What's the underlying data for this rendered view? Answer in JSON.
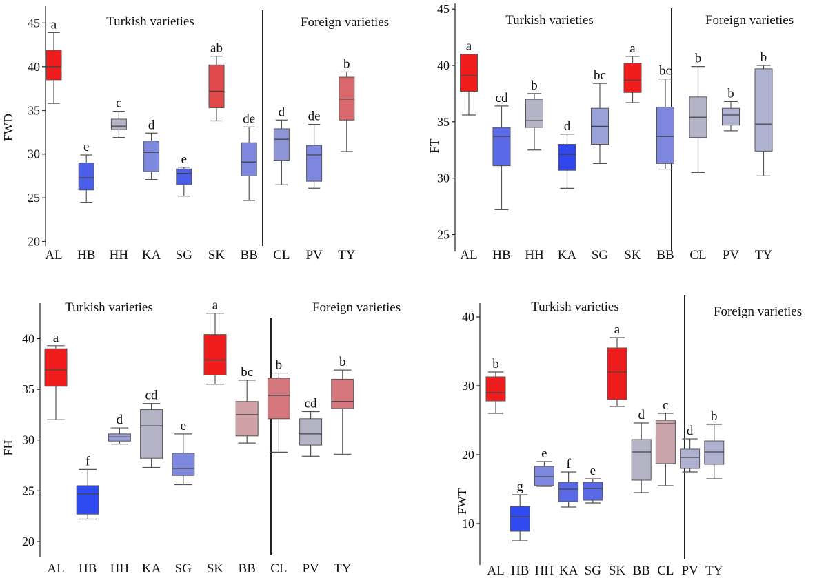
{
  "chart_data": [
    {
      "type": "boxplot",
      "ylabel": "FWD",
      "ylim": [
        19.5,
        47
      ],
      "yticks": [
        20,
        25,
        30,
        35,
        40,
        45
      ],
      "group_labels": [
        "Turkish varieties",
        "Foreign varieties"
      ],
      "categories": [
        "AL",
        "HB",
        "HH",
        "KA",
        "SG",
        "SK",
        "BB",
        "CL",
        "PV",
        "TY"
      ],
      "boxes": [
        {
          "min": 35.8,
          "q1": 38.5,
          "median": 40.0,
          "q3": 41.9,
          "max": 43.9,
          "color": "#ee1c1c",
          "letter": "a"
        },
        {
          "min": 24.5,
          "q1": 25.9,
          "median": 27.3,
          "q3": 29.0,
          "max": 29.9,
          "color": "#4a5ee8",
          "letter": "e"
        },
        {
          "min": 31.9,
          "q1": 32.8,
          "median": 33.2,
          "q3": 34.0,
          "max": 34.9,
          "color": "#b4b4c6",
          "letter": "c"
        },
        {
          "min": 27.1,
          "q1": 28.0,
          "median": 30.2,
          "q3": 31.5,
          "max": 32.4,
          "color": "#7e88de",
          "letter": "d"
        },
        {
          "min": 25.2,
          "q1": 26.5,
          "median": 27.8,
          "q3": 28.3,
          "max": 28.5,
          "color": "#4a5ee8",
          "letter": "e"
        },
        {
          "min": 33.8,
          "q1": 35.3,
          "median": 37.2,
          "q3": 40.2,
          "max": 41.2,
          "color": "#e04a4a",
          "letter": "ab"
        },
        {
          "min": 24.7,
          "q1": 27.5,
          "median": 29.1,
          "q3": 31.3,
          "max": 33.1,
          "color": "#7e88de",
          "letter": "de"
        },
        {
          "min": 26.5,
          "q1": 29.3,
          "median": 31.7,
          "q3": 32.9,
          "max": 33.9,
          "color": "#8e96d8",
          "letter": "d"
        },
        {
          "min": 26.1,
          "q1": 26.9,
          "median": 29.9,
          "q3": 31.0,
          "max": 33.4,
          "color": "#7e88de",
          "letter": "de"
        },
        {
          "min": 30.3,
          "q1": 33.9,
          "median": 36.3,
          "q3": 38.8,
          "max": 39.4,
          "color": "#d9676c",
          "letter": "b"
        }
      ]
    },
    {
      "type": "boxplot",
      "ylabel": "FT",
      "ylim": [
        23.5,
        45.5
      ],
      "yticks": [
        25,
        30,
        35,
        40,
        45
      ],
      "group_labels": [
        "Turkish varieties",
        "Foreign varieties"
      ],
      "categories": [
        "AL",
        "HB",
        "HH",
        "KA",
        "SG",
        "SK",
        "BB",
        "CL",
        "PV",
        "TY"
      ],
      "boxes": [
        {
          "min": 35.6,
          "q1": 37.7,
          "median": 39.1,
          "q3": 41.0,
          "max": 41.0,
          "color": "#ee1c1c",
          "letter": "a"
        },
        {
          "min": 27.2,
          "q1": 31.1,
          "median": 33.7,
          "q3": 34.5,
          "max": 36.4,
          "color": "#5a6ae6",
          "letter": "cd"
        },
        {
          "min": 32.5,
          "q1": 34.5,
          "median": 35.1,
          "q3": 37.0,
          "max": 37.5,
          "color": "#b4b4c6",
          "letter": "b"
        },
        {
          "min": 29.1,
          "q1": 30.7,
          "median": 32.1,
          "q3": 33.0,
          "max": 33.9,
          "color": "#3246ee",
          "letter": "d"
        },
        {
          "min": 31.3,
          "q1": 33.0,
          "median": 34.6,
          "q3": 36.2,
          "max": 38.4,
          "color": "#9aa0d8",
          "letter": "bc"
        },
        {
          "min": 36.7,
          "q1": 37.6,
          "median": 38.7,
          "q3": 40.2,
          "max": 40.8,
          "color": "#ee1c1c",
          "letter": "a"
        },
        {
          "min": 30.8,
          "q1": 31.3,
          "median": 33.7,
          "q3": 36.3,
          "max": 38.8,
          "color": "#7e88de",
          "letter": "bc"
        },
        {
          "min": 30.5,
          "q1": 33.6,
          "median": 35.4,
          "q3": 37.2,
          "max": 39.9,
          "color": "#b4b4c6",
          "letter": "b"
        },
        {
          "min": 34.2,
          "q1": 34.7,
          "median": 35.6,
          "q3": 36.2,
          "max": 36.8,
          "color": "#aeb2d0",
          "letter": "b"
        },
        {
          "min": 30.2,
          "q1": 32.4,
          "median": 34.8,
          "q3": 39.7,
          "max": 40.0,
          "color": "#aeb2d0",
          "letter": "b"
        }
      ]
    },
    {
      "type": "boxplot",
      "ylabel": "FH",
      "ylim": [
        18.5,
        43.5
      ],
      "yticks": [
        20,
        25,
        30,
        35,
        40
      ],
      "group_labels": [
        "Turkish varieties",
        "Foreign varieties"
      ],
      "categories": [
        "AL",
        "HB",
        "HH",
        "KA",
        "SG",
        "SK",
        "BB",
        "CL",
        "PV",
        "TY"
      ],
      "boxes": [
        {
          "min": 32.0,
          "q1": 35.3,
          "median": 36.9,
          "q3": 39.0,
          "max": 39.3,
          "color": "#ee1c1c",
          "letter": "a"
        },
        {
          "min": 22.2,
          "q1": 22.7,
          "median": 24.7,
          "q3": 25.5,
          "max": 27.1,
          "color": "#2f4af0",
          "letter": "f"
        },
        {
          "min": 29.6,
          "q1": 29.9,
          "median": 30.3,
          "q3": 30.6,
          "max": 31.2,
          "color": "#9aa0d8",
          "letter": "d"
        },
        {
          "min": 27.3,
          "q1": 28.2,
          "median": 31.4,
          "q3": 33.0,
          "max": 33.6,
          "color": "#b4b4c6",
          "letter": "cd"
        },
        {
          "min": 25.6,
          "q1": 26.5,
          "median": 27.2,
          "q3": 28.7,
          "max": 30.6,
          "color": "#7e88de",
          "letter": "e"
        },
        {
          "min": 35.5,
          "q1": 36.4,
          "median": 37.9,
          "q3": 40.4,
          "max": 42.5,
          "color": "#ee1c1c",
          "letter": "a"
        },
        {
          "min": 29.7,
          "q1": 30.4,
          "median": 32.5,
          "q3": 33.8,
          "max": 35.9,
          "color": "#cfa0a6",
          "letter": "bc"
        },
        {
          "min": 28.8,
          "q1": 32.1,
          "median": 34.4,
          "q3": 36.1,
          "max": 36.6,
          "color": "#d4767c",
          "letter": "b"
        },
        {
          "min": 28.4,
          "q1": 29.5,
          "median": 30.6,
          "q3": 32.1,
          "max": 32.8,
          "color": "#b4b4c6",
          "letter": "cd"
        },
        {
          "min": 28.6,
          "q1": 33.1,
          "median": 33.8,
          "q3": 36.0,
          "max": 36.9,
          "color": "#d4767c",
          "letter": "b"
        }
      ]
    },
    {
      "type": "boxplot",
      "ylabel": "FWT",
      "ylim": [
        4,
        42
      ],
      "yticks": [
        10,
        20,
        30,
        40
      ],
      "group_labels": [
        "Turkish varieties",
        "Foreign varieties"
      ],
      "categories": [
        "AL",
        "HB",
        "HH",
        "KA",
        "SG",
        "SK",
        "BB",
        "CL",
        "PV",
        "TY"
      ],
      "boxes": [
        {
          "min": 26.0,
          "q1": 27.8,
          "median": 29.0,
          "q3": 31.3,
          "max": 32.0,
          "color": "#ee1c1c",
          "letter": "b"
        },
        {
          "min": 7.5,
          "q1": 8.9,
          "median": 11.0,
          "q3": 12.5,
          "max": 14.2,
          "color": "#2f4af0",
          "letter": "g"
        },
        {
          "min": 15.4,
          "q1": 15.5,
          "median": 16.8,
          "q3": 18.3,
          "max": 19.0,
          "color": "#7e88de",
          "letter": "e"
        },
        {
          "min": 12.4,
          "q1": 13.2,
          "median": 15.0,
          "q3": 16.0,
          "max": 17.5,
          "color": "#5a6ae6",
          "letter": "f"
        },
        {
          "min": 13.0,
          "q1": 13.4,
          "median": 15.1,
          "q3": 16.0,
          "max": 16.5,
          "color": "#5a6ae6",
          "letter": "e"
        },
        {
          "min": 27.0,
          "q1": 28.0,
          "median": 32.0,
          "q3": 35.5,
          "max": 37.0,
          "color": "#ee1c1c",
          "letter": "a"
        },
        {
          "min": 14.5,
          "q1": 16.3,
          "median": 20.4,
          "q3": 22.2,
          "max": 24.6,
          "color": "#b4b4c6",
          "letter": "d"
        },
        {
          "min": 15.5,
          "q1": 18.7,
          "median": 24.5,
          "q3": 25.0,
          "max": 26.0,
          "color": "#c9a4aa",
          "letter": "c"
        },
        {
          "min": 17.5,
          "q1": 18.0,
          "median": 19.6,
          "q3": 20.8,
          "max": 22.3,
          "color": "#aeb2d0",
          "letter": "d"
        },
        {
          "min": 16.5,
          "q1": 18.6,
          "median": 20.4,
          "q3": 22.0,
          "max": 24.4,
          "color": "#aeb2d0",
          "letter": "b"
        }
      ]
    }
  ]
}
